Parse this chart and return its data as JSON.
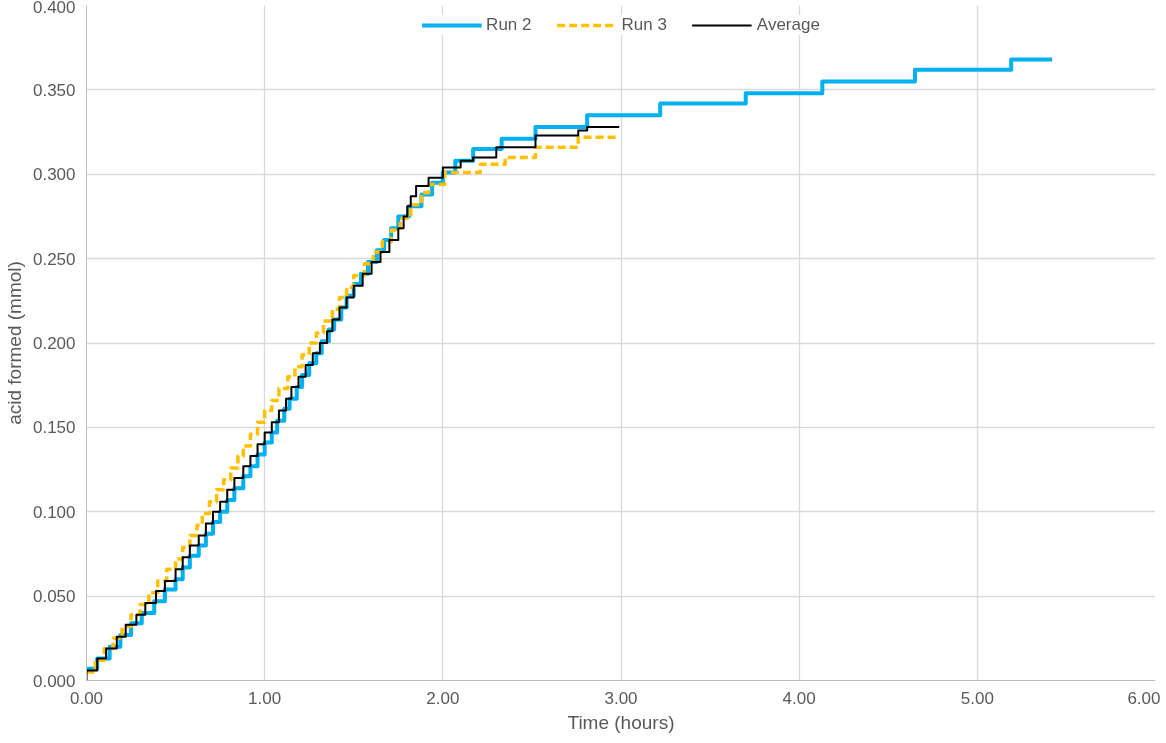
{
  "chart_data": {
    "type": "step",
    "xlabel": "Time (hours)",
    "ylabel": "acid formed (mmol)",
    "xlim": [
      0,
      6
    ],
    "ylim": [
      0,
      0.4
    ],
    "xticks": [
      {
        "value": 0,
        "label": "0.00"
      },
      {
        "value": 1,
        "label": "1.00"
      },
      {
        "value": 2,
        "label": "2.00"
      },
      {
        "value": 3,
        "label": "3.00"
      },
      {
        "value": 4,
        "label": "4.00"
      },
      {
        "value": 5,
        "label": "5.00"
      },
      {
        "value": 6,
        "label": "6.00"
      }
    ],
    "yticks": [
      {
        "value": 0,
        "label": "0.000"
      },
      {
        "value": 0.05,
        "label": "0.050"
      },
      {
        "value": 0.1,
        "label": "0.100"
      },
      {
        "value": 0.15,
        "label": "0.150"
      },
      {
        "value": 0.2,
        "label": "0.200"
      },
      {
        "value": 0.25,
        "label": "0.250"
      },
      {
        "value": 0.3,
        "label": "0.300"
      },
      {
        "value": 0.35,
        "label": "0.350"
      },
      {
        "value": 0.4,
        "label": "0.400"
      }
    ],
    "grid": true,
    "legend": "top",
    "marker": "none",
    "series": [
      {
        "name": "Run 2",
        "color": "#00b0f0",
        "line_style": "solid",
        "x": [
          0.0,
          0.06,
          0.13,
          0.19,
          0.25,
          0.31,
          0.38,
          0.44,
          0.5,
          0.54,
          0.58,
          0.63,
          0.67,
          0.71,
          0.75,
          0.79,
          0.83,
          0.88,
          0.92,
          0.96,
          1.0,
          1.04,
          1.07,
          1.11,
          1.14,
          1.18,
          1.21,
          1.25,
          1.29,
          1.32,
          1.36,
          1.39,
          1.43,
          1.46,
          1.5,
          1.54,
          1.58,
          1.63,
          1.67,
          1.71,
          1.75,
          1.81,
          1.88,
          1.94,
          2.0,
          2.07,
          2.17,
          2.33,
          2.52,
          2.81,
          3.22,
          3.7,
          4.13,
          4.65,
          5.19,
          5.42
        ],
        "values": [
          0.007,
          0.013,
          0.02,
          0.027,
          0.034,
          0.04,
          0.047,
          0.054,
          0.06,
          0.067,
          0.074,
          0.08,
          0.087,
          0.094,
          0.1,
          0.107,
          0.114,
          0.121,
          0.127,
          0.134,
          0.141,
          0.147,
          0.154,
          0.161,
          0.167,
          0.174,
          0.181,
          0.188,
          0.194,
          0.201,
          0.208,
          0.214,
          0.221,
          0.228,
          0.235,
          0.241,
          0.248,
          0.255,
          0.261,
          0.268,
          0.275,
          0.281,
          0.288,
          0.295,
          0.301,
          0.308,
          0.315,
          0.321,
          0.328,
          0.335,
          0.342,
          0.348,
          0.355,
          0.362,
          0.368,
          0.368
        ]
      },
      {
        "name": "Run 3",
        "color": "#ffc000",
        "line_style": "dashed",
        "x": [
          0.0,
          0.05,
          0.1,
          0.15,
          0.2,
          0.25,
          0.3,
          0.35,
          0.4,
          0.45,
          0.5,
          0.54,
          0.58,
          0.62,
          0.65,
          0.69,
          0.73,
          0.77,
          0.81,
          0.85,
          0.88,
          0.92,
          0.96,
          1.0,
          1.04,
          1.08,
          1.13,
          1.17,
          1.21,
          1.25,
          1.29,
          1.33,
          1.38,
          1.42,
          1.46,
          1.5,
          1.56,
          1.61,
          1.66,
          1.71,
          1.76,
          1.82,
          1.88,
          1.92,
          2.01,
          2.21,
          2.35,
          2.52,
          2.76,
          2.99
        ],
        "values": [
          0.005,
          0.012,
          0.019,
          0.025,
          0.032,
          0.039,
          0.045,
          0.052,
          0.059,
          0.066,
          0.072,
          0.079,
          0.086,
          0.092,
          0.099,
          0.106,
          0.113,
          0.119,
          0.126,
          0.133,
          0.139,
          0.146,
          0.153,
          0.16,
          0.166,
          0.173,
          0.18,
          0.186,
          0.193,
          0.2,
          0.206,
          0.213,
          0.22,
          0.227,
          0.233,
          0.24,
          0.247,
          0.254,
          0.26,
          0.267,
          0.274,
          0.282,
          0.289,
          0.294,
          0.301,
          0.306,
          0.31,
          0.316,
          0.322,
          0.322
        ]
      },
      {
        "name": "Average",
        "color": "#000000",
        "line_style": "solid",
        "x": [
          0.0,
          0.0,
          0.06,
          0.11,
          0.17,
          0.22,
          0.28,
          0.33,
          0.39,
          0.44,
          0.5,
          0.54,
          0.58,
          0.63,
          0.67,
          0.71,
          0.75,
          0.79,
          0.83,
          0.88,
          0.92,
          0.96,
          1.0,
          1.04,
          1.08,
          1.12,
          1.15,
          1.19,
          1.23,
          1.27,
          1.31,
          1.35,
          1.38,
          1.42,
          1.46,
          1.5,
          1.55,
          1.6,
          1.65,
          1.7,
          1.75,
          1.78,
          1.8,
          1.82,
          1.85,
          1.92,
          2.0,
          2.1,
          2.17,
          2.3,
          2.52,
          2.76,
          2.81,
          2.99
        ],
        "values": [
          0.0,
          0.006,
          0.013,
          0.019,
          0.026,
          0.033,
          0.039,
          0.046,
          0.053,
          0.059,
          0.066,
          0.073,
          0.08,
          0.086,
          0.093,
          0.1,
          0.106,
          0.113,
          0.12,
          0.127,
          0.133,
          0.14,
          0.147,
          0.153,
          0.16,
          0.167,
          0.174,
          0.18,
          0.187,
          0.194,
          0.2,
          0.207,
          0.214,
          0.221,
          0.227,
          0.234,
          0.241,
          0.248,
          0.254,
          0.261,
          0.268,
          0.275,
          0.281,
          0.287,
          0.293,
          0.298,
          0.304,
          0.308,
          0.31,
          0.316,
          0.323,
          0.326,
          0.328,
          0.328
        ]
      }
    ]
  }
}
